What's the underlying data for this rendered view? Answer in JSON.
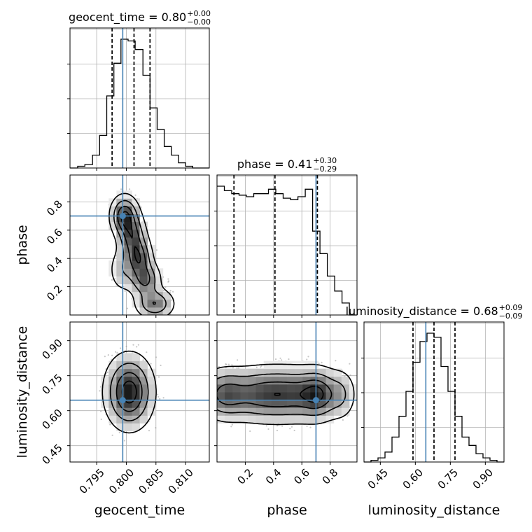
{
  "chart_data": {
    "type": "corner",
    "parameters": [
      "geocent_time",
      "phase",
      "luminosity_distance"
    ],
    "truths": [
      0.7994,
      0.7,
      0.645
    ],
    "truth_color": "#4682b4",
    "grid": true,
    "titles": [
      {
        "param": "geocent_time",
        "median": "0.80",
        "plus": "+0.00",
        "minus": "−0.00"
      },
      {
        "param": "phase",
        "median": "0.41",
        "plus": "+0.30",
        "minus": "−0.29"
      },
      {
        "param": "luminosity_distance",
        "median": "0.68",
        "plus": "+0.09",
        "minus": "−0.09"
      }
    ],
    "ranges": {
      "geocent_time": [
        0.7905,
        0.814
      ],
      "phase": [
        0.0,
        0.99
      ],
      "luminosity_distance": [
        0.38,
        0.98
      ]
    },
    "ticks": {
      "geocent_time": [
        {
          "v": 0.795,
          "label": "0.795"
        },
        {
          "v": 0.8,
          "label": "0.800"
        },
        {
          "v": 0.805,
          "label": "0.805"
        },
        {
          "v": 0.81,
          "label": "0.810"
        }
      ],
      "phase_x": [
        {
          "v": 0.2,
          "label": "0.2"
        },
        {
          "v": 0.4,
          "label": "0.4"
        },
        {
          "v": 0.6,
          "label": "0.6"
        },
        {
          "v": 0.8,
          "label": "0.8"
        }
      ],
      "phase_y": [
        {
          "v": 0.2,
          "label": "0.2"
        },
        {
          "v": 0.4,
          "label": "0.4"
        },
        {
          "v": 0.6,
          "label": "0.6"
        },
        {
          "v": 0.8,
          "label": "0.8"
        }
      ],
      "luminosity_distance": [
        {
          "v": 0.45,
          "label": "0.45"
        },
        {
          "v": 0.6,
          "label": "0.60"
        },
        {
          "v": 0.75,
          "label": "0.75"
        },
        {
          "v": 0.9,
          "label": "0.90"
        }
      ]
    },
    "histograms": {
      "geocent_time": {
        "quantiles": [
          0.7976,
          0.8013,
          0.804
        ],
        "bin_edges": [
          0.7905,
          0.7918,
          0.793,
          0.7943,
          0.7955,
          0.7967,
          0.7979,
          0.7991,
          0.8003,
          0.8015,
          0.8028,
          0.804,
          0.8052,
          0.8064,
          0.8076,
          0.8088,
          0.81,
          0.8112,
          0.8125,
          0.814
        ],
        "counts": [
          0,
          2,
          4,
          15,
          38,
          84,
          122,
          150,
          148,
          138,
          108,
          70,
          45,
          25,
          15,
          6,
          2,
          0,
          0
        ]
      },
      "phase": {
        "quantiles": [
          0.12,
          0.41,
          0.71
        ],
        "bin_edges": [
          0.0,
          0.052,
          0.104,
          0.156,
          0.208,
          0.26,
          0.312,
          0.364,
          0.416,
          0.468,
          0.52,
          0.572,
          0.624,
          0.676,
          0.728,
          0.78,
          0.832,
          0.884,
          0.936,
          0.988
        ],
        "counts": [
          172,
          166,
          162,
          160,
          158,
          162,
          162,
          168,
          162,
          156,
          154,
          158,
          168,
          112,
          82,
          52,
          32,
          16,
          0
        ]
      },
      "luminosity_distance": {
        "quantiles": [
          0.59,
          0.68,
          0.77
        ],
        "bin_edges": [
          0.38,
          0.41,
          0.44,
          0.47,
          0.5,
          0.53,
          0.56,
          0.59,
          0.62,
          0.65,
          0.68,
          0.71,
          0.74,
          0.77,
          0.8,
          0.83,
          0.86,
          0.89,
          0.92,
          0.95,
          0.98
        ],
        "counts": [
          0,
          2,
          5,
          12,
          30,
          55,
          85,
          120,
          145,
          155,
          150,
          115,
          85,
          55,
          30,
          20,
          10,
          5,
          2,
          0
        ]
      }
    },
    "densities_2d": [
      {
        "x": "geocent_time",
        "y": "phase",
        "blobs": [
          {
            "cx": 0.7997,
            "cy": 0.7,
            "sx": 0.0013,
            "sy": 0.08,
            "w": 1.0
          },
          {
            "cx": 0.801,
            "cy": 0.55,
            "sx": 0.0013,
            "sy": 0.09,
            "w": 0.8
          },
          {
            "cx": 0.8022,
            "cy": 0.4,
            "sx": 0.0012,
            "sy": 0.08,
            "w": 0.8
          },
          {
            "cx": 0.8032,
            "cy": 0.25,
            "sx": 0.0014,
            "sy": 0.07,
            "w": 0.75
          },
          {
            "cx": 0.8048,
            "cy": 0.08,
            "sx": 0.0018,
            "sy": 0.06,
            "w": 0.7
          },
          {
            "cx": 0.7995,
            "cy": 0.32,
            "sx": 0.0014,
            "sy": 0.09,
            "w": 0.35
          }
        ]
      },
      {
        "x": "geocent_time",
        "y": "luminosity_distance",
        "blobs": [
          {
            "cx": 0.8005,
            "cy": 0.68,
            "sx": 0.0022,
            "sy": 0.085,
            "w": 1.0
          }
        ]
      },
      {
        "x": "phase",
        "y": "luminosity_distance",
        "blobs": [
          {
            "cx": 0.05,
            "cy": 0.67,
            "sx": 0.1,
            "sy": 0.06,
            "w": 0.9
          },
          {
            "cx": 0.3,
            "cy": 0.67,
            "sx": 0.14,
            "sy": 0.065,
            "w": 0.9
          },
          {
            "cx": 0.55,
            "cy": 0.67,
            "sx": 0.14,
            "sy": 0.065,
            "w": 0.9
          },
          {
            "cx": 0.72,
            "cy": 0.67,
            "sx": 0.08,
            "sy": 0.06,
            "w": 0.9
          },
          {
            "cx": 0.88,
            "cy": 0.67,
            "sx": 0.06,
            "sy": 0.06,
            "w": 0.45
          }
        ]
      }
    ],
    "contour_levels": [
      0.12,
      0.35,
      0.62,
      0.86
    ]
  }
}
